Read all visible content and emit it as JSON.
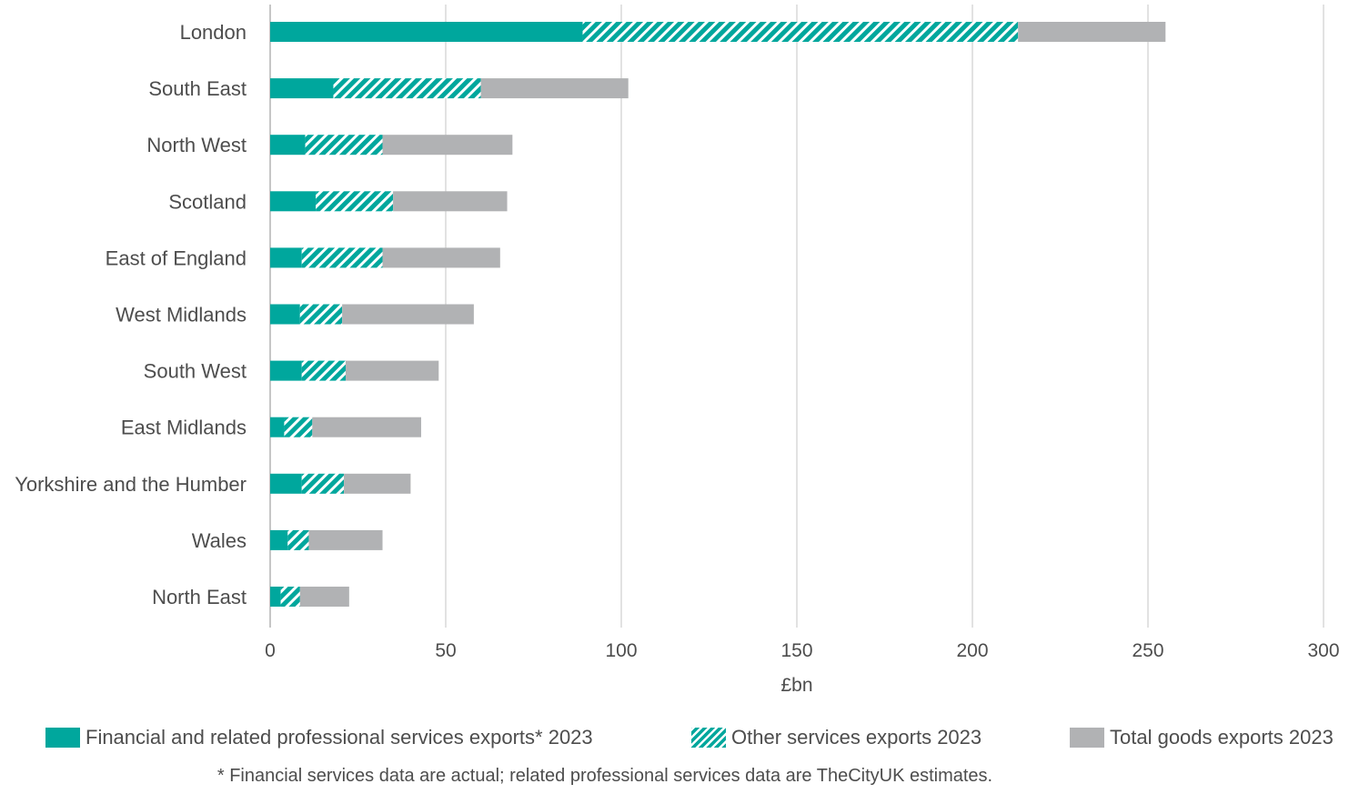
{
  "chart_data": {
    "type": "bar",
    "orientation": "horizontal",
    "stacked": true,
    "categories": [
      "London",
      "South East",
      "North West",
      "Scotland",
      "East of England",
      "West Midlands",
      "South West",
      "East Midlands",
      "Yorkshire and the Humber",
      "Wales",
      "North East"
    ],
    "series": [
      {
        "name": "Financial and related professional services exports* 2023",
        "values": [
          89,
          18,
          10,
          13,
          9,
          8.5,
          9,
          4,
          9,
          5,
          3
        ],
        "color": "#00a79d",
        "pattern": "solid"
      },
      {
        "name": "Other services exports 2023",
        "values": [
          124,
          42,
          22,
          22,
          23,
          12,
          12.5,
          8,
          12,
          6,
          5.5
        ],
        "color": "#00a79d",
        "pattern": "hatched"
      },
      {
        "name": "Total goods exports 2023",
        "values": [
          42,
          42,
          37,
          32.5,
          33.5,
          37.5,
          26.5,
          31,
          19,
          21,
          14
        ],
        "color": "#b1b2b4",
        "pattern": "solid"
      }
    ],
    "xlabel": "£bn",
    "xlim": [
      0,
      300
    ],
    "xticks": [
      0,
      50,
      100,
      150,
      200,
      250,
      300
    ],
    "grid": "vertical",
    "legend": "bottom",
    "footnote": "* Financial services data are actual; related professional services data are TheCityUK estimates."
  }
}
